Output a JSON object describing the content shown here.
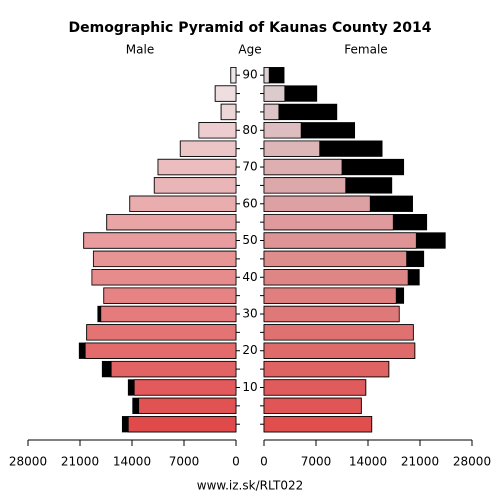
{
  "chart_data": {
    "type": "pyramid",
    "title": "Demographic Pyramid of Kaunas County 2014",
    "left_label": "Male",
    "center_label": "Age",
    "right_label": "Female",
    "footer": "www.iz.sk/RLT022",
    "categories": [
      "90",
      null,
      null,
      "80",
      null,
      "70",
      null,
      "60",
      null,
      "50",
      null,
      "40",
      null,
      "30",
      null,
      "20",
      null,
      "10",
      null,
      null
    ],
    "series": [
      {
        "name": "Male",
        "color_top": "#efe6e8",
        "color_bottom": "#e04a4a",
        "values": [
          700,
          2800,
          2000,
          5000,
          7500,
          10500,
          11000,
          14300,
          17400,
          20500,
          19200,
          19400,
          17800,
          18600,
          20100,
          21100,
          18000,
          14500,
          13900,
          15300
        ]
      },
      {
        "name": "Female",
        "color_top": "#dcd2d4",
        "color_bottom": "#e04e4e",
        "values": [
          2700,
          7100,
          9800,
          12200,
          15900,
          18800,
          17200,
          20000,
          21900,
          24400,
          21500,
          20900,
          18800,
          18200,
          20100,
          20300,
          16800,
          13700,
          13100,
          14500
        ]
      }
    ],
    "excess_color": "#000000",
    "xlim": [
      0,
      28000
    ],
    "xticks": [
      0,
      7000,
      14000,
      21000,
      28000
    ]
  }
}
